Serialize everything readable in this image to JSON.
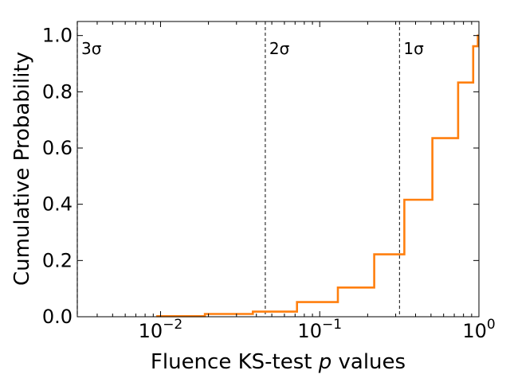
{
  "chart_data": {
    "type": "line",
    "step": true,
    "xscale": "log",
    "xlabel_prefix": "Fluence KS-test ",
    "xlabel_var": "p",
    "xlabel_suffix": " values",
    "ylabel": "Cumulative Probability",
    "xlim": [
      0.003,
      1.0
    ],
    "ylim": [
      0.0,
      1.05
    ],
    "xticks": [
      {
        "value": 0.01,
        "base": "10",
        "exp": "−2"
      },
      {
        "value": 0.1,
        "base": "10",
        "exp": "−1"
      },
      {
        "value": 1.0,
        "base": "10",
        "exp": "0"
      }
    ],
    "yticks": [
      {
        "value": 0.0,
        "label": "0.0"
      },
      {
        "value": 0.2,
        "label": "0.2"
      },
      {
        "value": 0.4,
        "label": "0.4"
      },
      {
        "value": 0.6,
        "label": "0.6"
      },
      {
        "value": 0.8,
        "label": "0.8"
      },
      {
        "value": 1.0,
        "label": "1.0"
      }
    ],
    "vlines": [
      {
        "x": 0.0027,
        "label": "3σ"
      },
      {
        "x": 0.0455,
        "label": "2σ"
      },
      {
        "x": 0.3173,
        "label": "1σ"
      }
    ],
    "series": [
      {
        "color": "#ff7f0e",
        "x": [
          0.0094,
          0.019,
          0.038,
          0.072,
          0.13,
          0.22,
          0.34,
          0.51,
          0.74,
          0.92,
          0.985,
          1.0
        ],
        "y": [
          0.002,
          0.01,
          0.018,
          0.052,
          0.104,
          0.222,
          0.416,
          0.635,
          0.833,
          0.962,
          1.0,
          1.0
        ]
      }
    ]
  }
}
